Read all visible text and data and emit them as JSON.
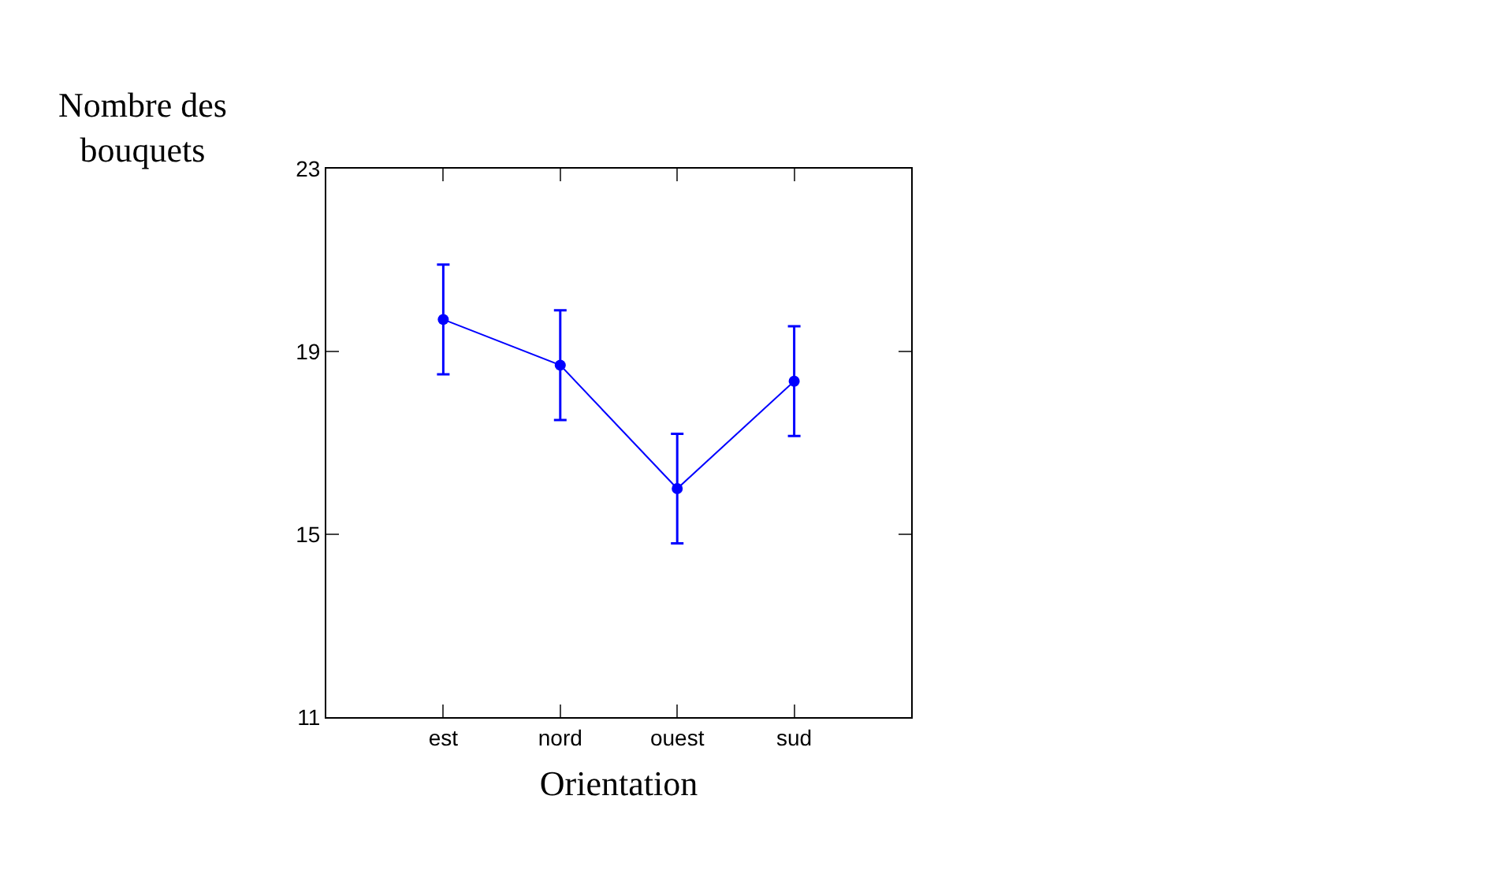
{
  "chart_data": {
    "type": "line",
    "xlabel": "Orientation",
    "ylabel": "Nombre des\nbouquets",
    "categories": [
      "est",
      "nord",
      "ouest",
      "sud"
    ],
    "series": [
      {
        "color": "#0000ff",
        "values": [
          19.7,
          18.7,
          16.0,
          18.35
        ],
        "errors": [
          1.2,
          1.2,
          1.2,
          1.2
        ]
      }
    ],
    "ylim": [
      11,
      23
    ],
    "yticks": [
      11,
      15,
      19,
      23
    ],
    "legend": false,
    "marker": "circle",
    "line_style": "solid"
  }
}
